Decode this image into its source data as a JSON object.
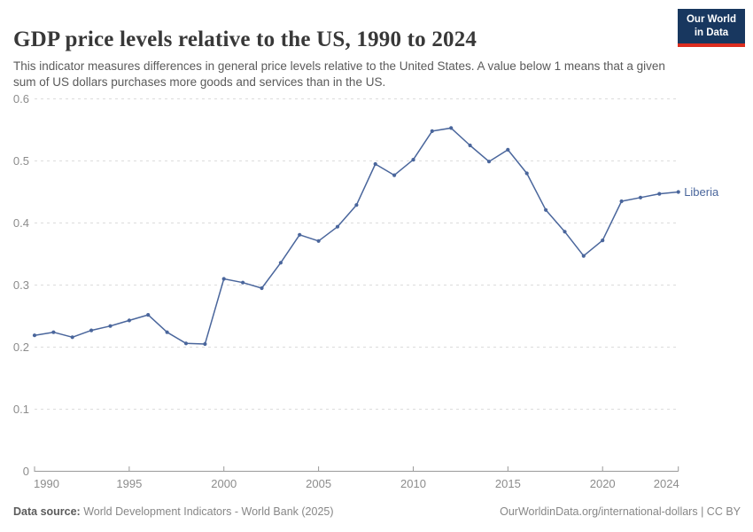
{
  "header": {
    "title": "GDP price levels relative to the US, 1990 to 2024",
    "subtitle": "This indicator measures differences in general price levels relative to the United States. A value below 1 means that a given sum of US dollars purchases more goods and services than in the US.",
    "logo": {
      "line1": "Our World",
      "line2": "in Data",
      "bg_color": "#18375f",
      "accent_color": "#dc2d1f"
    }
  },
  "chart_data": {
    "type": "line",
    "title": "GDP price levels relative to the US, 1990 to 2024",
    "xlabel": "",
    "ylabel": "",
    "xlim": [
      1990,
      2024
    ],
    "ylim": [
      0,
      0.6
    ],
    "x_ticks": [
      1990,
      1995,
      2000,
      2005,
      2010,
      2015,
      2020,
      2024
    ],
    "y_ticks": [
      0,
      0.1,
      0.2,
      0.3,
      0.4,
      0.5,
      0.6
    ],
    "grid": "horizontal-dashed",
    "legend_position": "right-of-line-end",
    "series": [
      {
        "name": "Liberia",
        "color": "#4a669c",
        "x": [
          1990,
          1991,
          1992,
          1993,
          1994,
          1995,
          1996,
          1997,
          1998,
          1999,
          2000,
          2001,
          2002,
          2003,
          2004,
          2005,
          2006,
          2007,
          2008,
          2009,
          2010,
          2011,
          2012,
          2013,
          2014,
          2015,
          2016,
          2017,
          2018,
          2019,
          2020,
          2021,
          2022,
          2023,
          2024
        ],
        "values": [
          0.219,
          0.224,
          0.216,
          0.227,
          0.234,
          0.243,
          0.252,
          0.224,
          0.206,
          0.205,
          0.31,
          0.304,
          0.295,
          0.336,
          0.381,
          0.371,
          0.394,
          0.429,
          0.495,
          0.477,
          0.502,
          0.548,
          0.553,
          0.525,
          0.499,
          0.518,
          0.48,
          0.421,
          0.386,
          0.347,
          0.372,
          0.435,
          0.441,
          0.447,
          0.45
        ]
      }
    ],
    "colors": {
      "grid": "#dcdcdc",
      "axis": "#9a9a9a",
      "tick_labels": "#8c8c8c"
    }
  },
  "footer": {
    "source_label": "Data source:",
    "source_value": " World Development Indicators - World Bank (2025)",
    "credit": "OurWorldinData.org/international-dollars | CC BY"
  }
}
